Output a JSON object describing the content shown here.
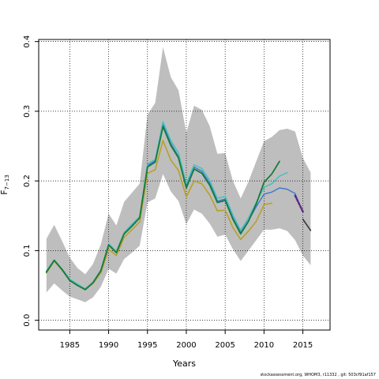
{
  "footer_text": "stockassessment.org, WHOM3, r11332 , git: 503cf91af157",
  "chart_data": {
    "type": "line",
    "xlabel": "Years",
    "ylabel": "F",
    "ylabel_sub": "7−13",
    "xlim": [
      1981,
      2018.5
    ],
    "ylim": [
      -0.014,
      0.403
    ],
    "x_ticks": [
      1985,
      1990,
      1995,
      2000,
      2005,
      2010,
      2015
    ],
    "y_ticks": [
      0.0,
      0.1,
      0.2,
      0.3,
      0.4
    ],
    "y_tick_labels": [
      "0.0",
      "0.1",
      "0.2",
      "0.3",
      "0.4"
    ],
    "grid": true,
    "band_color": "#bebebe",
    "confidence_band": {
      "x": [
        1982,
        1983,
        1984,
        1985,
        1986,
        1987,
        1988,
        1989,
        1990,
        1991,
        1992,
        1993,
        1994,
        1995,
        1996,
        1997,
        1998,
        1999,
        2000,
        2001,
        2002,
        2003,
        2004,
        2005,
        2006,
        2007,
        2008,
        2009,
        2010,
        2011,
        2012,
        2013,
        2014,
        2015,
        2016
      ],
      "lower": [
        0.04,
        0.053,
        0.043,
        0.034,
        0.03,
        0.026,
        0.033,
        0.048,
        0.074,
        0.067,
        0.088,
        0.097,
        0.107,
        0.169,
        0.175,
        0.21,
        0.185,
        0.171,
        0.138,
        0.159,
        0.153,
        0.139,
        0.12,
        0.123,
        0.102,
        0.085,
        0.1,
        0.115,
        0.13,
        0.13,
        0.132,
        0.128,
        0.115,
        0.093,
        0.079
      ],
      "upper": [
        0.117,
        0.137,
        0.114,
        0.09,
        0.075,
        0.066,
        0.081,
        0.109,
        0.153,
        0.136,
        0.17,
        0.183,
        0.196,
        0.295,
        0.312,
        0.392,
        0.349,
        0.33,
        0.269,
        0.308,
        0.302,
        0.279,
        0.239,
        0.24,
        0.2,
        0.175,
        0.199,
        0.228,
        0.257,
        0.263,
        0.273,
        0.275,
        0.271,
        0.233,
        0.212
      ]
    },
    "series": [
      {
        "color": "#b8a02a",
        "width": 1.6,
        "x": [
          1982,
          1983,
          1984,
          1985,
          1986,
          1987,
          1988,
          1989,
          1990,
          1991,
          1992,
          1993,
          1994,
          1995,
          1996,
          1997,
          1998,
          1999,
          2000,
          2001,
          2002,
          2003,
          2004,
          2005,
          2006,
          2007,
          2008,
          2009,
          2010,
          2011
        ],
        "values": [
          0.068,
          0.085,
          0.072,
          0.057,
          0.05,
          0.044,
          0.053,
          0.068,
          0.102,
          0.093,
          0.119,
          0.13,
          0.141,
          0.211,
          0.216,
          0.258,
          0.23,
          0.215,
          0.177,
          0.2,
          0.196,
          0.18,
          0.157,
          0.158,
          0.133,
          0.116,
          0.128,
          0.142,
          0.166,
          0.168
        ]
      },
      {
        "color": "#3a7ad0",
        "width": 1.4,
        "x": [
          1982,
          1983,
          1984,
          1985,
          1986,
          1987,
          1988,
          1989,
          1990,
          1991,
          1992,
          1993,
          1994,
          1995,
          1996,
          1997,
          1998,
          1999,
          2000,
          2001,
          2002,
          2003,
          2004,
          2005,
          2006,
          2007,
          2008,
          2009,
          2010,
          2011,
          2012,
          2013,
          2014,
          2015
        ],
        "values": [
          0.07,
          0.086,
          0.073,
          0.058,
          0.051,
          0.045,
          0.055,
          0.072,
          0.109,
          0.098,
          0.125,
          0.137,
          0.148,
          0.222,
          0.229,
          0.281,
          0.254,
          0.235,
          0.192,
          0.22,
          0.214,
          0.197,
          0.171,
          0.174,
          0.147,
          0.126,
          0.143,
          0.163,
          0.181,
          0.184,
          0.19,
          0.188,
          0.182,
          0.155
        ]
      },
      {
        "color": "#40c0c0",
        "width": 1.4,
        "x": [
          1982,
          1983,
          1984,
          1985,
          1986,
          1987,
          1988,
          1989,
          1990,
          1991,
          1992,
          1993,
          1994,
          1995,
          1996,
          1997,
          1998,
          1999,
          2000,
          2001,
          2002,
          2003,
          2004,
          2005,
          2006,
          2007,
          2008,
          2009,
          2010,
          2011,
          2012,
          2013
        ],
        "values": [
          0.071,
          0.087,
          0.074,
          0.059,
          0.052,
          0.045,
          0.055,
          0.072,
          0.11,
          0.099,
          0.126,
          0.138,
          0.149,
          0.224,
          0.231,
          0.285,
          0.258,
          0.24,
          0.196,
          0.223,
          0.218,
          0.201,
          0.175,
          0.178,
          0.151,
          0.129,
          0.147,
          0.169,
          0.191,
          0.196,
          0.207,
          0.212
        ]
      },
      {
        "color": "#1a7a3a",
        "width": 1.8,
        "x": [
          1982,
          1983,
          1984,
          1985,
          1986,
          1987,
          1988,
          1989,
          1990,
          1991,
          1992,
          1993,
          1994,
          1995,
          1996,
          1997,
          1998,
          1999,
          2000,
          2001,
          2002,
          2003,
          2004,
          2005,
          2006,
          2007,
          2008,
          2009,
          2010,
          2011,
          2012
        ],
        "values": [
          0.069,
          0.086,
          0.073,
          0.057,
          0.05,
          0.044,
          0.054,
          0.071,
          0.108,
          0.097,
          0.124,
          0.135,
          0.147,
          0.22,
          0.227,
          0.278,
          0.251,
          0.233,
          0.19,
          0.217,
          0.211,
          0.194,
          0.169,
          0.172,
          0.145,
          0.124,
          0.142,
          0.167,
          0.198,
          0.21,
          0.228
        ]
      },
      {
        "color": "#5a2a80",
        "width": 2.4,
        "dash": "3,2",
        "x": [
          2014,
          2015
        ],
        "values": [
          0.179,
          0.156
        ]
      },
      {
        "color": "#333333",
        "width": 1.6,
        "x": [
          2015,
          2016
        ],
        "values": [
          0.145,
          0.129
        ]
      }
    ]
  }
}
